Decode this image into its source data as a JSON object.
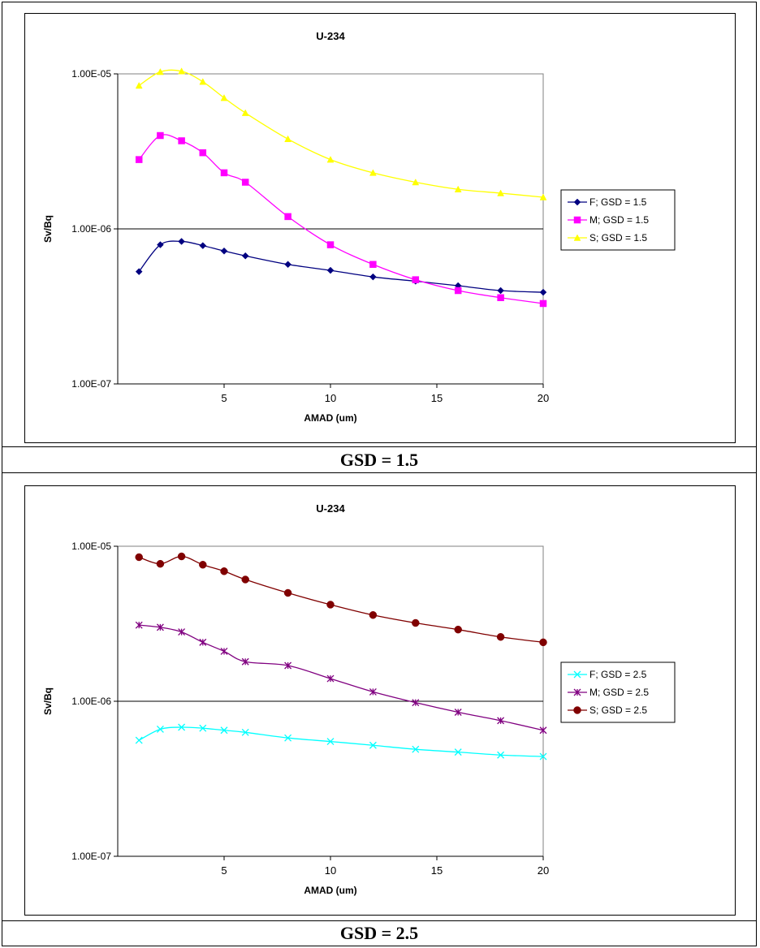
{
  "chart_data": [
    {
      "type": "line",
      "title": "U-234",
      "xlabel": "AMAD (um)",
      "ylabel": "Sv/Bq",
      "yscale": "log",
      "ylim": [
        1e-07,
        1e-05
      ],
      "xlim": [
        0,
        20
      ],
      "x_ticks": [
        5,
        10,
        15,
        20
      ],
      "y_ticks": [
        "1.00E-07",
        "1.00E-06",
        "1.00E-05"
      ],
      "y_tick_values": [
        1e-07,
        1e-06,
        1e-05
      ],
      "gridlines": "horizontal-major",
      "legend_position": "right",
      "x": [
        1,
        2,
        3,
        4,
        5,
        6,
        8,
        10,
        12,
        14,
        16,
        18,
        20
      ],
      "series": [
        {
          "name": "F; GSD = 1.5",
          "color": "#000080",
          "marker": "diamond",
          "values": [
            5.3e-07,
            7.9e-07,
            8.3e-07,
            7.8e-07,
            7.2e-07,
            6.7e-07,
            5.9e-07,
            5.4e-07,
            4.9e-07,
            4.6e-07,
            4.3e-07,
            4e-07,
            3.9e-07
          ]
        },
        {
          "name": "M; GSD = 1.5",
          "color": "#FF00FF",
          "marker": "square",
          "values": [
            2.8e-06,
            4e-06,
            3.7e-06,
            3.1e-06,
            2.3e-06,
            2e-06,
            1.2e-06,
            7.9e-07,
            5.9e-07,
            4.7e-07,
            4e-07,
            3.6e-07,
            3.3e-07
          ]
        },
        {
          "name": "S; GSD = 1.5",
          "color": "#FFFF00",
          "marker": "triangle",
          "values": [
            8.4e-06,
            1.03e-05,
            1.04e-05,
            8.9e-06,
            7e-06,
            5.6e-06,
            3.8e-06,
            2.8e-06,
            2.3e-06,
            2e-06,
            1.8e-06,
            1.7e-06,
            1.6e-06
          ]
        }
      ]
    },
    {
      "type": "line",
      "title": "U-234",
      "xlabel": "AMAD (um)",
      "ylabel": "Sv/Bq",
      "yscale": "log",
      "ylim": [
        1e-07,
        1e-05
      ],
      "xlim": [
        0,
        20
      ],
      "x_ticks": [
        5,
        10,
        15,
        20
      ],
      "y_ticks": [
        "1.00E-07",
        "1.00E-06",
        "1.00E-05"
      ],
      "y_tick_values": [
        1e-07,
        1e-06,
        1e-05
      ],
      "gridlines": "horizontal-major",
      "legend_position": "right",
      "x": [
        1,
        2,
        3,
        4,
        5,
        6,
        8,
        10,
        12,
        14,
        16,
        18,
        20
      ],
      "series": [
        {
          "name": "F; GSD = 2.5",
          "color": "#00FFFF",
          "marker": "x",
          "values": [
            5.6e-07,
            6.6e-07,
            6.8e-07,
            6.7e-07,
            6.5e-07,
            6.3e-07,
            5.8e-07,
            5.5e-07,
            5.2e-07,
            4.9e-07,
            4.7e-07,
            4.5e-07,
            4.4e-07
          ]
        },
        {
          "name": "M; GSD = 2.5",
          "color": "#800080",
          "marker": "asterisk",
          "values": [
            3.1e-06,
            3e-06,
            2.8e-06,
            2.4e-06,
            2.1e-06,
            1.8e-06,
            1.7e-06,
            1.4e-06,
            1.15e-06,
            9.8e-07,
            8.5e-07,
            7.5e-07,
            6.5e-07
          ]
        },
        {
          "name": "S; GSD = 2.5",
          "color": "#800000",
          "marker": "circle",
          "values": [
            8.5e-06,
            7.7e-06,
            8.6e-06,
            7.6e-06,
            6.9e-06,
            6.1e-06,
            5e-06,
            4.2e-06,
            3.6e-06,
            3.2e-06,
            2.9e-06,
            2.6e-06,
            2.4e-06
          ]
        }
      ]
    }
  ],
  "captions": [
    "GSD = 1.5",
    "GSD = 2.5"
  ]
}
